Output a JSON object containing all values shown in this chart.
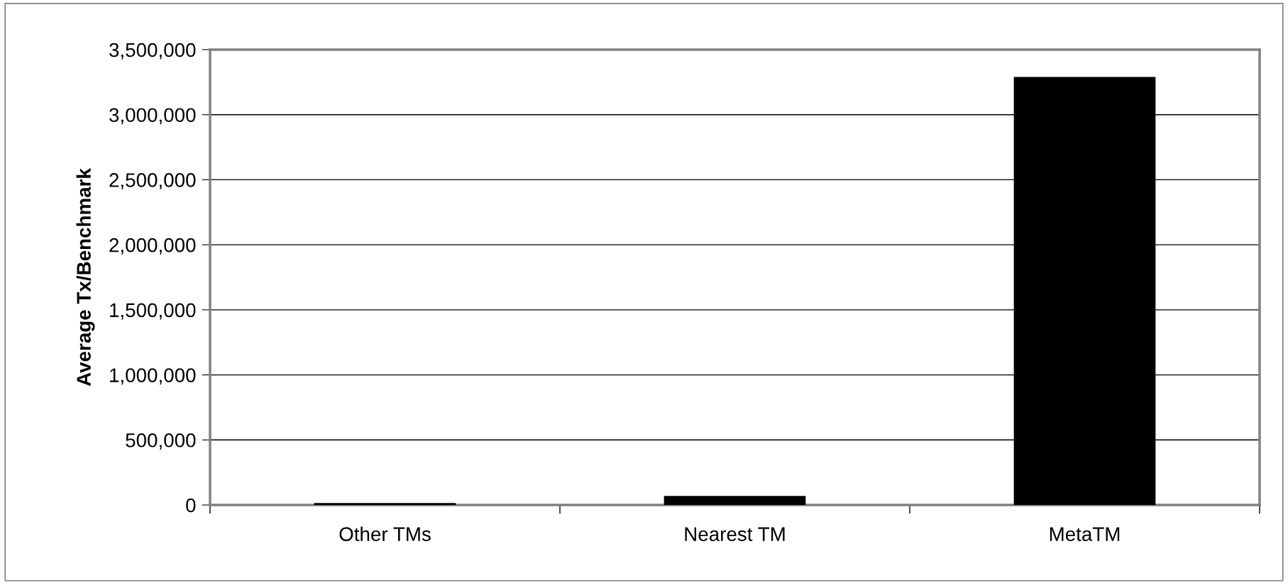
{
  "chart_data": {
    "type": "bar",
    "ylabel": "Average Tx/Benchmark",
    "categories": [
      "Other TMs",
      "Nearest TM",
      "MetaTM"
    ],
    "values": [
      15000,
      70000,
      3290000
    ],
    "color": "#000000",
    "ylim": [
      0,
      3500000
    ],
    "yticks": [
      0,
      {
        "value": 500000,
        "label": "500,000"
      },
      {
        "value": 1000000,
        "label": "1,000,000"
      },
      {
        "value": 1500000,
        "label": "1,500,000"
      },
      {
        "value": 2000000,
        "label": "2,000,000"
      },
      {
        "value": 2500000,
        "label": "2,500,000"
      },
      {
        "value": 3000000,
        "label": "3,000,000"
      },
      {
        "value": 3500000,
        "label": "3,500,000"
      }
    ],
    "grid": "y",
    "legend": false
  }
}
